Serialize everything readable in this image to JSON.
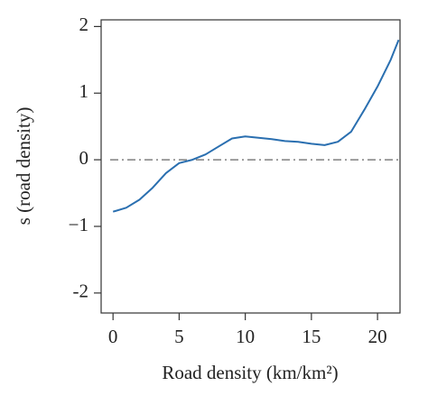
{
  "chart_data": {
    "type": "line",
    "x_label": "Road density (km/km²)",
    "y_label": "s (road density)",
    "x": [
      0,
      1,
      2,
      3,
      4,
      5,
      6,
      7,
      8,
      9,
      10,
      11,
      12,
      13,
      14,
      15,
      16,
      17,
      18,
      19,
      20,
      21,
      21.6
    ],
    "series": [
      {
        "color": "#2a6fb0",
        "values": [
          -0.78,
          -0.72,
          -0.6,
          -0.42,
          -0.2,
          -0.05,
          0.0,
          0.08,
          0.2,
          0.32,
          0.35,
          0.33,
          0.31,
          0.28,
          0.27,
          0.24,
          0.22,
          0.27,
          0.42,
          0.75,
          1.1,
          1.5,
          1.8
        ]
      }
    ],
    "reference_line": 0,
    "xlim": [
      -0.9,
      21.7
    ],
    "ylim": [
      -2.3,
      2.1
    ],
    "xticks": [
      0,
      5,
      10,
      15,
      20
    ],
    "yticks": [
      {
        "value": -2,
        "label": "-2"
      },
      {
        "value": -1,
        "label": "−1"
      },
      0,
      1,
      2
    ]
  }
}
